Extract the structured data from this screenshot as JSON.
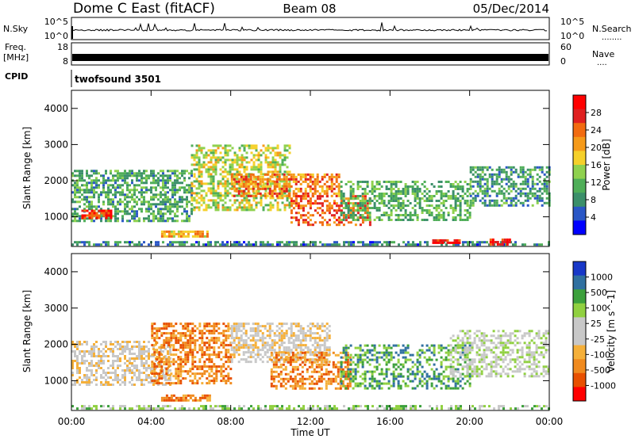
{
  "header": {
    "station": "Dome C East (fitACF)",
    "beam": "Beam 08",
    "date": "05/Dec/2014"
  },
  "aux_panels": {
    "nsky_label": "N.Sky",
    "nsky_tick_top": "10^5",
    "nsky_tick_bottom": "10^0",
    "nsky_right_tick_top": "10^5",
    "nsky_right_tick_bottom": "10^0",
    "nsearch_label": "N.Search",
    "freq_label": "Freq.",
    "freq_unit": "[MHz]",
    "freq_tick_top": "18",
    "freq_tick_bottom": "8",
    "nave_tick_top": "60",
    "nave_tick_bottom": "0",
    "nave_label": "Nave",
    "cpid_label": "CPID",
    "cpid_value": "twofsound 3501"
  },
  "colors": {
    "power_scale": [
      "#0000ff",
      "#2a57c6",
      "#3b8f6a",
      "#4fae58",
      "#8fd14e",
      "#f5d02a",
      "#f59a1a",
      "#f26b10",
      "#e02020",
      "#ff0000"
    ],
    "velocity_scale": [
      "#ff0000",
      "#e85000",
      "#f08a1e",
      "#f5b03a",
      "#c8c8c8",
      "#c8c8c8",
      "#90d040",
      "#3ca03c",
      "#3070a0",
      "#1838c8"
    ]
  },
  "chart_data": [
    {
      "type": "heatmap",
      "panel": "power",
      "xlabel": "Time UT",
      "ylabel": "Slant Range [km]",
      "x_ticks": [
        "00:00",
        "04:00",
        "08:00",
        "12:00",
        "16:00",
        "20:00",
        "00:00"
      ],
      "y_ticks": [
        "1000",
        "2000",
        "3000",
        "4000"
      ],
      "xlim_hours": [
        0,
        24
      ],
      "ylim_km": [
        180,
        4500
      ],
      "colorbar_label": "Power [dB]",
      "colorbar_ticks": [
        "4",
        "8",
        "12",
        "16",
        "20",
        "24",
        "28"
      ],
      "colorbar_range": [
        0,
        30
      ],
      "bands": [
        {
          "t0": 0.0,
          "t1": 24.0,
          "r0": 200,
          "r1": 330,
          "level": 6,
          "density": 0.55
        },
        {
          "t0": 0.0,
          "t1": 6.0,
          "r0": 900,
          "r1": 2300,
          "level": 9,
          "density": 0.6
        },
        {
          "t0": 0.5,
          "t1": 2.0,
          "r0": 950,
          "r1": 1200,
          "level": 27,
          "density": 0.8
        },
        {
          "t0": 4.5,
          "t1": 7.0,
          "r0": 480,
          "r1": 620,
          "level": 19,
          "density": 0.8
        },
        {
          "t0": 6.0,
          "t1": 11.0,
          "r0": 1200,
          "r1": 3000,
          "level": 15,
          "density": 0.55
        },
        {
          "t0": 8.0,
          "t1": 13.5,
          "r0": 1600,
          "r1": 2200,
          "level": 22,
          "density": 0.6
        },
        {
          "t0": 11.0,
          "t1": 15.0,
          "r0": 800,
          "r1": 1600,
          "level": 24,
          "density": 0.5
        },
        {
          "t0": 13.5,
          "t1": 20.0,
          "r0": 900,
          "r1": 2000,
          "level": 10,
          "density": 0.5
        },
        {
          "t0": 18.0,
          "t1": 19.5,
          "r0": 250,
          "r1": 380,
          "level": 28,
          "density": 0.8
        },
        {
          "t0": 21.0,
          "t1": 22.0,
          "r0": 250,
          "r1": 400,
          "level": 28,
          "density": 0.8
        },
        {
          "t0": 20.0,
          "t1": 24.0,
          "r0": 1300,
          "r1": 2400,
          "level": 8,
          "density": 0.55
        }
      ]
    },
    {
      "type": "heatmap",
      "panel": "velocity",
      "xlabel": "Time UT",
      "ylabel": "Slant Range [km]",
      "x_ticks": [
        "00:00",
        "04:00",
        "08:00",
        "12:00",
        "16:00",
        "20:00",
        "00:00"
      ],
      "y_ticks": [
        "1000",
        "2000",
        "3000",
        "4000"
      ],
      "xlim_hours": [
        0,
        24
      ],
      "ylim_km": [
        180,
        4500
      ],
      "colorbar_label": "Velocity [m s^-1]",
      "colorbar_ticks": [
        "1000",
        "500",
        "100",
        "25",
        "-25",
        "-100",
        "-500",
        "-1000"
      ],
      "bands": [
        {
          "t0": 0.0,
          "t1": 24.0,
          "r0": 200,
          "r1": 330,
          "level": 6,
          "density": 0.5
        },
        {
          "t0": 0.0,
          "t1": 5.0,
          "r0": 900,
          "r1": 2100,
          "level": 4,
          "density": 0.55
        },
        {
          "t0": 4.0,
          "t1": 8.0,
          "r0": 900,
          "r1": 2600,
          "level": 2,
          "density": 0.55
        },
        {
          "t0": 4.5,
          "t1": 7.0,
          "r0": 480,
          "r1": 620,
          "level": 2,
          "density": 0.8
        },
        {
          "t0": 8.0,
          "t1": 13.0,
          "r0": 1500,
          "r1": 2600,
          "level": 4,
          "density": 0.6
        },
        {
          "t0": 10.0,
          "t1": 14.0,
          "r0": 800,
          "r1": 1800,
          "level": 2,
          "density": 0.5
        },
        {
          "t0": 13.5,
          "t1": 20.0,
          "r0": 800,
          "r1": 2000,
          "level": 7,
          "density": 0.45
        },
        {
          "t0": 19.0,
          "t1": 24.0,
          "r0": 1100,
          "r1": 2400,
          "level": 5,
          "density": 0.5
        }
      ]
    }
  ]
}
